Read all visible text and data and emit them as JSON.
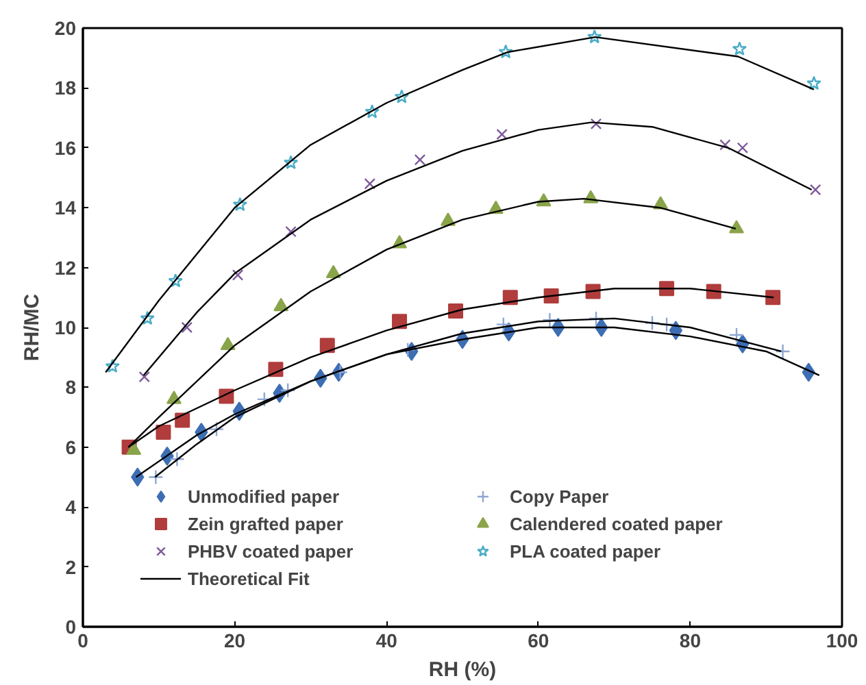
{
  "chart_data": {
    "type": "scatter",
    "xlabel": "RH (%)",
    "ylabel": "RH/MC",
    "xlim": [
      0,
      100
    ],
    "ylim": [
      0,
      20
    ],
    "xticks": [
      0,
      20,
      40,
      60,
      80,
      100
    ],
    "yticks": [
      0,
      2,
      4,
      6,
      8,
      10,
      12,
      14,
      16,
      18,
      20
    ],
    "grid": false,
    "legend": "bottom",
    "series": [
      {
        "name": "Unmodified paper",
        "color": "#3d6eb4",
        "marker": "diamond",
        "x": [
          7.2,
          11.1,
          15.6,
          20.6,
          25.9,
          31.3,
          33.7,
          43.3,
          50,
          56.1,
          62.6,
          68.3,
          78.1,
          86.9,
          95.6
        ],
        "values": [
          5.0,
          5.7,
          6.5,
          7.2,
          7.8,
          8.3,
          8.5,
          9.2,
          9.6,
          9.85,
          10.0,
          10.0,
          9.9,
          9.45,
          8.5
        ]
      },
      {
        "name": "Copy Paper",
        "color": "#8ea6d4",
        "marker": "cross",
        "x": [
          9.6,
          12.4,
          17.6,
          23.9,
          27,
          33.9,
          42.8,
          55.4,
          61.5,
          67.6,
          75,
          76.9,
          86.1,
          92.2
        ],
        "values": [
          5.0,
          5.6,
          6.6,
          7.6,
          7.9,
          8.5,
          9.25,
          10.1,
          10.25,
          10.3,
          10.15,
          10.1,
          9.75,
          9.2
        ]
      },
      {
        "name": "Zein grafted paper",
        "color": "#b03c3c",
        "marker": "square",
        "x": [
          6.1,
          10.6,
          13.1,
          18.9,
          25.4,
          32.2,
          41.7,
          49.1,
          56.3,
          61.7,
          67.2,
          76.9,
          83.1,
          90.9
        ],
        "values": [
          6.0,
          6.5,
          6.9,
          7.7,
          8.6,
          9.4,
          10.2,
          10.55,
          11.0,
          11.05,
          11.2,
          11.3,
          11.2,
          11.0
        ]
      },
      {
        "name": "Calendered coated paper",
        "color": "#8aa44a",
        "marker": "triangle",
        "x": [
          6.7,
          12,
          19.1,
          26.1,
          33,
          41.7,
          48.1,
          54.4,
          60.7,
          66.9,
          76.1,
          86.1
        ],
        "values": [
          5.9,
          7.6,
          9.4,
          10.7,
          11.8,
          12.8,
          13.55,
          13.95,
          14.2,
          14.3,
          14.1,
          13.3
        ]
      },
      {
        "name": "PHBV coated paper",
        "color": "#7e5a9b",
        "marker": "x",
        "x": [
          8.1,
          13.7,
          20.4,
          27.4,
          37.8,
          44.4,
          55.2,
          67.6,
          84.6,
          86.9,
          96.5
        ],
        "values": [
          8.35,
          10.0,
          11.75,
          13.2,
          14.8,
          15.6,
          16.45,
          16.8,
          16.1,
          16.0,
          14.6
        ]
      },
      {
        "name": "PLA coated paper",
        "color": "#4aacc6",
        "marker": "star",
        "x": [
          3.9,
          8.5,
          12.2,
          20.7,
          27.4,
          38.1,
          42,
          55.7,
          67.4,
          86.5,
          96.3
        ],
        "values": [
          8.7,
          10.3,
          11.55,
          14.1,
          15.5,
          17.2,
          17.7,
          19.2,
          19.7,
          19.3,
          18.15
        ]
      },
      {
        "name": "Theoretical Fit",
        "type": "line",
        "color": "#000000",
        "marker": "none",
        "x": [
          7,
          15,
          20,
          30,
          40,
          50,
          60,
          70,
          80,
          90,
          97
        ],
        "values": [
          5.0,
          6.4,
          7.1,
          8.2,
          9.1,
          9.6,
          10.0,
          10.0,
          9.7,
          9.2,
          8.4
        ]
      },
      {
        "type": "line",
        "color": "#000000",
        "marker": "none",
        "x": [
          9.5,
          15,
          20,
          30,
          40,
          50,
          60,
          70,
          80,
          92
        ],
        "values": [
          5.0,
          6.1,
          7.0,
          8.2,
          9.1,
          9.8,
          10.2,
          10.3,
          10.0,
          9.2
        ]
      },
      {
        "type": "line",
        "color": "#000000",
        "marker": "none",
        "x": [
          6,
          10,
          20,
          30,
          40,
          50,
          60,
          70,
          80,
          91
        ],
        "values": [
          6.0,
          6.7,
          7.9,
          9.0,
          9.9,
          10.6,
          11.0,
          11.3,
          11.3,
          11.0
        ]
      },
      {
        "type": "line",
        "color": "#000000",
        "marker": "none",
        "x": [
          6,
          10,
          20,
          30,
          40,
          50,
          60,
          66,
          76,
          86
        ],
        "values": [
          6.0,
          7.0,
          9.4,
          11.2,
          12.6,
          13.6,
          14.2,
          14.3,
          14.0,
          13.3
        ]
      },
      {
        "type": "line",
        "color": "#000000",
        "marker": "none",
        "x": [
          8,
          15,
          20,
          30,
          40,
          50,
          60,
          67,
          75,
          85,
          96
        ],
        "values": [
          8.4,
          10.5,
          11.8,
          13.6,
          14.9,
          15.9,
          16.6,
          16.85,
          16.7,
          16.0,
          14.6
        ]
      },
      {
        "type": "line",
        "color": "#000000",
        "marker": "none",
        "x": [
          3,
          10,
          20,
          30,
          40,
          50,
          56,
          67.5,
          86.3,
          96.3
        ],
        "values": [
          8.5,
          10.9,
          14.0,
          16.1,
          17.5,
          18.6,
          19.2,
          19.7,
          19.05,
          17.95
        ]
      }
    ]
  }
}
